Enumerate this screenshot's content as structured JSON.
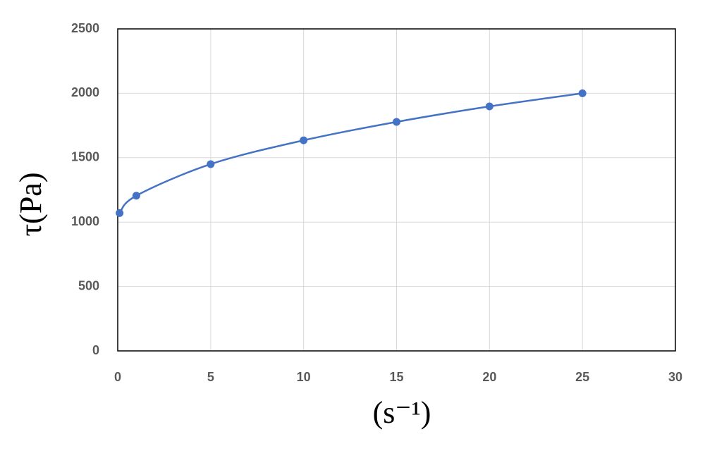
{
  "chart_data": {
    "type": "scatter-smooth",
    "ylabel": "τ(Pa)",
    "xlabel": "(s⁻¹)",
    "x": [
      0.1,
      1,
      5,
      10,
      15,
      20,
      25
    ],
    "series": [
      {
        "color": "#4472c4",
        "values": [
          1070,
          1205,
          1450,
          1635,
          1778,
          1898,
          2000
        ]
      }
    ],
    "xlim": [
      0,
      30
    ],
    "xticks": [
      0,
      5,
      10,
      15,
      20,
      25,
      30
    ],
    "ylim": [
      0,
      2500
    ],
    "yticks": [
      0,
      500,
      1000,
      1500,
      2000,
      2500
    ],
    "grid": true
  }
}
